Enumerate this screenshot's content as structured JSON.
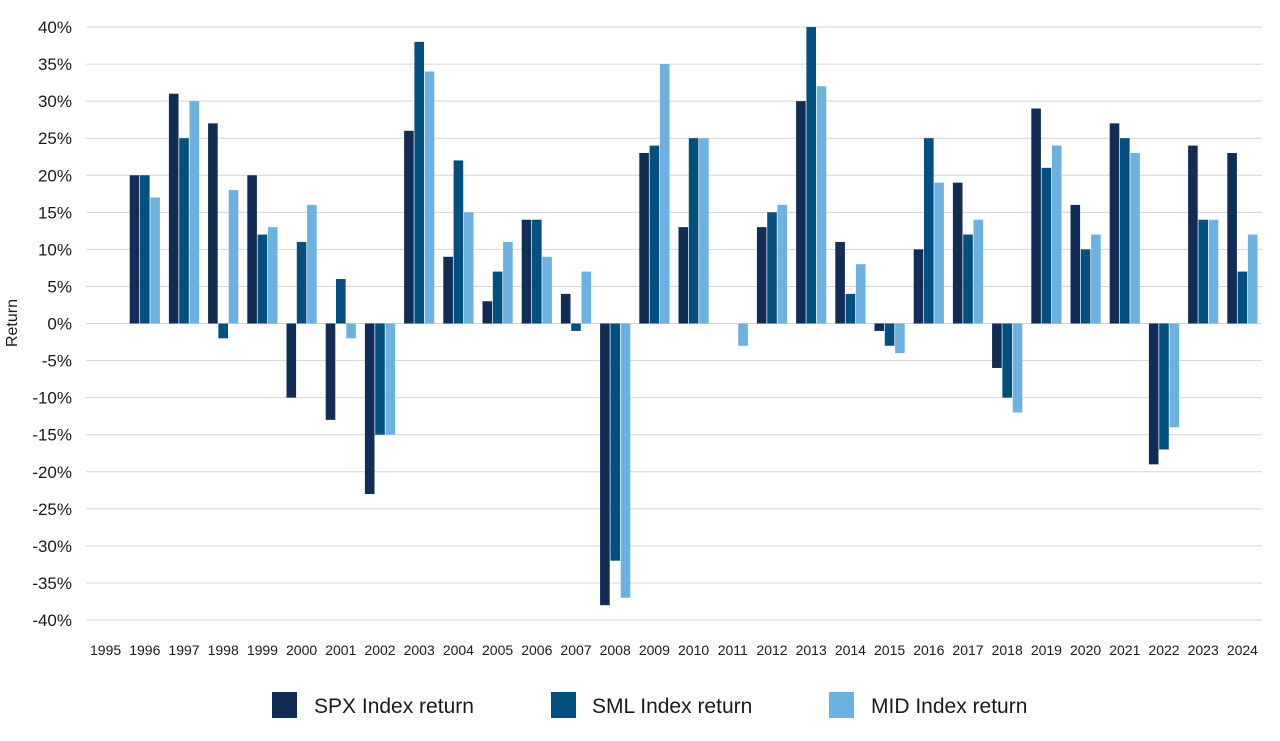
{
  "chart_data": {
    "type": "bar",
    "ylabel": "Return",
    "ylim": [
      -40,
      40
    ],
    "y_ticks": [
      40,
      35,
      30,
      25,
      20,
      15,
      10,
      5,
      0,
      -5,
      -10,
      -15,
      -20,
      -25,
      -30,
      -35,
      -40
    ],
    "y_tick_labels": [
      "40%",
      "35%",
      "30%",
      "25%",
      "20%",
      "15%",
      "10%",
      "5%",
      "0%",
      "-5%",
      "-10%",
      "-15%",
      "-20%",
      "-25%",
      "-30%",
      "-35%",
      "-40%"
    ],
    "grid": true,
    "legend_position": "bottom-center",
    "categories": [
      "1995",
      "1996",
      "1997",
      "1998",
      "1999",
      "2000",
      "2001",
      "2002",
      "2003",
      "2004",
      "2005",
      "2006",
      "2007",
      "2008",
      "2009",
      "2010",
      "2011",
      "2012",
      "2013",
      "2014",
      "2015",
      "2016",
      "2017",
      "2018",
      "2019",
      "2020",
      "2021",
      "2022",
      "2023",
      "2024"
    ],
    "series": [
      {
        "name": "SPX Index return",
        "color": "#112d55",
        "values": [
          null,
          20,
          31,
          27,
          20,
          -10,
          -13,
          -23,
          26,
          9,
          3,
          14,
          4,
          -38,
          23,
          13,
          0,
          13,
          30,
          11,
          -1,
          10,
          19,
          -6,
          29,
          16,
          27,
          -19,
          24,
          23
        ]
      },
      {
        "name": "SML Index return",
        "color": "#02507f",
        "values": [
          null,
          20,
          25,
          -2,
          12,
          11,
          6,
          -15,
          38,
          22,
          7,
          14,
          -1,
          -32,
          24,
          25,
          0,
          15,
          40,
          4,
          -3,
          25,
          12,
          -10,
          21,
          10,
          25,
          -17,
          14,
          7
        ]
      },
      {
        "name": "MID Index return",
        "color": "#6db1e0",
        "values": [
          null,
          17,
          30,
          18,
          13,
          16,
          -2,
          -15,
          34,
          15,
          11,
          9,
          7,
          -37,
          35,
          25,
          -3,
          16,
          32,
          8,
          -4,
          19,
          14,
          -12,
          24,
          12,
          23,
          -14,
          14,
          12
        ]
      }
    ]
  }
}
